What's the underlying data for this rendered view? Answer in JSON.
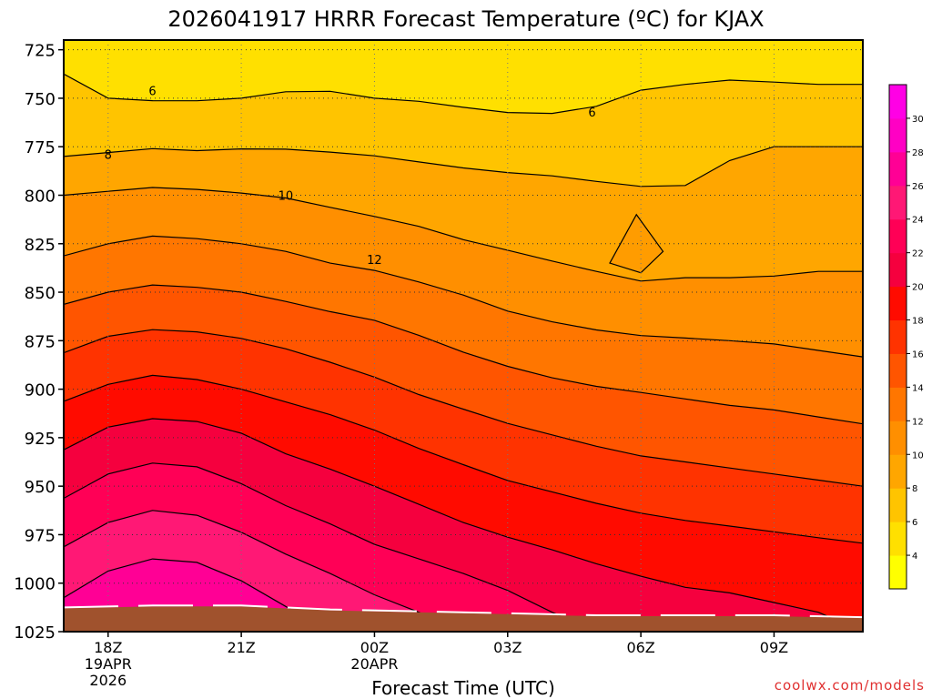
{
  "chart_data": {
    "type": "contour-filled",
    "title": "2026041917 HRRR Forecast Temperature (ºC) for KJAX",
    "xlabel": "Forecast Time (UTC)",
    "ylabel": "",
    "credit": "coolwx.com/models",
    "y_axis": {
      "units": "hPa",
      "inverted": true,
      "ylim": [
        1025,
        720
      ],
      "ticks": [
        725,
        750,
        775,
        800,
        825,
        850,
        875,
        900,
        925,
        950,
        975,
        1000,
        1025
      ]
    },
    "x_axis": {
      "units": "hours since 17Z 19APR2026",
      "xlim": [
        0,
        18
      ],
      "ticks": [
        {
          "x": 1,
          "label": "18Z",
          "sub1": "19APR",
          "sub2": "2026"
        },
        {
          "x": 4,
          "label": "21Z",
          "sub1": "",
          "sub2": ""
        },
        {
          "x": 7,
          "label": "00Z",
          "sub1": "20APR",
          "sub2": ""
        },
        {
          "x": 10,
          "label": "03Z",
          "sub1": "",
          "sub2": ""
        },
        {
          "x": 13,
          "label": "06Z",
          "sub1": "",
          "sub2": ""
        },
        {
          "x": 16,
          "label": "09Z",
          "sub1": "",
          "sub2": ""
        }
      ]
    },
    "grid": true,
    "colorbar": {
      "placement": "right",
      "bounds": [
        2,
        4,
        6,
        8,
        10,
        12,
        14,
        16,
        18,
        20,
        22,
        24,
        26,
        28,
        30,
        32
      ],
      "labels": [
        4,
        6,
        8,
        10,
        12,
        14,
        16,
        18,
        20,
        22,
        24,
        26,
        28,
        30
      ],
      "colors": [
        "#ffff00",
        "#ffe000",
        "#ffc400",
        "#ffa600",
        "#ff8f00",
        "#ff7600",
        "#ff5500",
        "#ff3300",
        "#ff0b00",
        "#f5003e",
        "#ff0056",
        "#ff1875",
        "#ff0095",
        "#ff00c4",
        "#ff00e5"
      ]
    },
    "contour_levels": [
      6,
      8,
      10,
      12,
      14,
      16,
      18,
      20,
      22,
      24,
      26
    ],
    "contour_labels": [
      {
        "text": "6",
        "x": 2.0,
        "p": 746
      },
      {
        "text": "6",
        "x": 11.9,
        "p": 757
      },
      {
        "text": "8",
        "x": 1.0,
        "p": 779
      },
      {
        "text": "10",
        "x": 5.0,
        "p": 800
      },
      {
        "text": "12",
        "x": 7.0,
        "p": 833
      }
    ],
    "temperature_profiles": {
      "x": [
        0,
        1,
        2,
        3,
        4,
        5,
        6,
        7,
        8,
        9,
        10,
        11,
        12,
        13,
        14,
        15,
        16,
        17,
        18
      ],
      "levels_hPa": [
        725,
        750,
        775,
        800,
        825,
        850,
        875,
        900,
        925,
        950,
        975,
        1000,
        1015
      ],
      "temperature_C": [
        [
          5.5,
          6.5,
          7.5,
          10.0,
          11.5,
          13.5,
          15.5,
          17.5,
          19.5,
          21.5,
          23.5,
          25.5,
          26.5
        ],
        [
          5.0,
          6.0,
          7.7,
          10.2,
          12.0,
          14.0,
          16.2,
          18.2,
          20.5,
          22.5,
          24.5,
          26.5,
          27.5
        ],
        [
          4.5,
          5.9,
          7.9,
          10.4,
          12.3,
          14.3,
          16.5,
          18.6,
          20.9,
          23.0,
          25.0,
          27.0,
          28.4
        ],
        [
          4.6,
          5.9,
          7.8,
          10.3,
          12.2,
          14.2,
          16.4,
          18.4,
          20.8,
          22.8,
          24.8,
          26.9,
          28.2
        ],
        [
          4.7,
          6.0,
          7.9,
          10.1,
          12.0,
          14.0,
          16.1,
          18.0,
          20.2,
          22.1,
          24.1,
          26.1,
          27.4
        ],
        [
          4.7,
          6.2,
          7.9,
          9.9,
          11.7,
          13.6,
          15.7,
          17.5,
          19.4,
          21.2,
          23.2,
          25.2,
          26.2
        ],
        [
          4.8,
          6.2,
          7.8,
          9.6,
          11.2,
          13.2,
          15.2,
          17.0,
          18.9,
          20.6,
          22.4,
          24.4,
          25.5
        ],
        [
          4.8,
          6.0,
          7.7,
          9.3,
          10.9,
          12.9,
          14.8,
          16.4,
          18.3,
          20.0,
          21.6,
          23.6,
          24.6
        ],
        [
          4.8,
          5.9,
          7.5,
          9.1,
          10.5,
          12.4,
          14.2,
          15.8,
          17.6,
          19.4,
          21.0,
          23.0,
          24.0
        ],
        [
          4.7,
          5.7,
          7.3,
          8.9,
          10.1,
          11.9,
          13.6,
          15.3,
          17.0,
          18.8,
          20.4,
          22.4,
          23.4
        ],
        [
          4.6,
          5.5,
          7.2,
          8.7,
          9.8,
          11.3,
          13.1,
          14.8,
          16.5,
          18.2,
          19.9,
          21.8,
          22.6
        ],
        [
          4.7,
          5.5,
          7.1,
          8.6,
          9.5,
          10.9,
          12.7,
          14.4,
          16.1,
          17.8,
          19.5,
          21.1,
          22.0
        ],
        [
          4.9,
          5.8,
          7.0,
          8.4,
          9.2,
          10.6,
          12.4,
          14.1,
          15.7,
          17.4,
          19.1,
          20.6,
          21.5
        ],
        [
          5.0,
          6.2,
          7.1,
          8.2,
          9.0,
          10.3,
          12.2,
          13.9,
          15.4,
          17.0,
          18.8,
          20.2,
          21.0
        ],
        [
          5.0,
          6.4,
          7.2,
          8.2,
          9.3,
          10.3,
          12.1,
          13.7,
          15.2,
          16.8,
          18.5,
          19.9,
          20.6
        ],
        [
          5.0,
          6.6,
          7.8,
          8.5,
          9.3,
          10.3,
          12.0,
          13.5,
          15.0,
          16.6,
          18.3,
          19.8,
          20.4
        ],
        [
          5.0,
          6.5,
          8.0,
          8.6,
          9.4,
          10.3,
          11.9,
          13.4,
          14.8,
          16.4,
          18.1,
          19.6,
          20.2
        ],
        [
          5.0,
          6.4,
          8.0,
          8.7,
          9.6,
          10.3,
          11.7,
          13.2,
          14.6,
          16.2,
          17.9,
          19.5,
          20.0
        ],
        [
          5.0,
          6.4,
          8.0,
          8.7,
          9.6,
          10.3,
          11.5,
          13.0,
          14.4,
          16.0,
          17.7,
          19.4,
          19.9
        ]
      ]
    },
    "surface_pressure_hPa": {
      "x": [
        0,
        2,
        4,
        6,
        8,
        10,
        12,
        14,
        16,
        18
      ],
      "p": [
        1013,
        1012,
        1012,
        1014,
        1015,
        1016,
        1017,
        1017,
        1017,
        1018
      ]
    }
  }
}
